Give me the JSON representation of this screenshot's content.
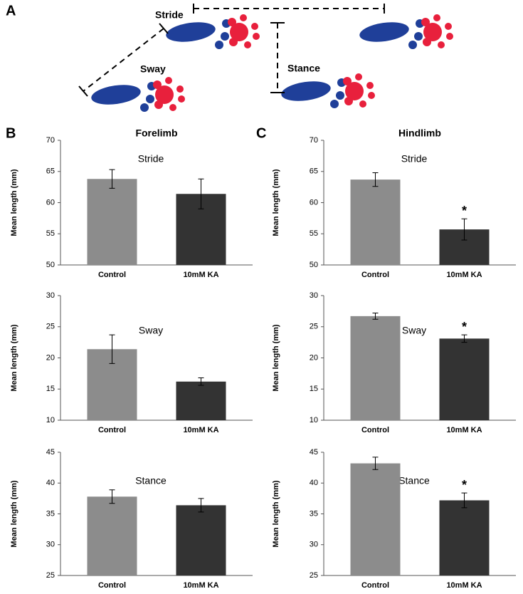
{
  "panels": {
    "a": "A",
    "b": "B",
    "c": "C"
  },
  "diagram": {
    "labels": [
      "Stride",
      "Sway",
      "Stance"
    ]
  },
  "headers": [
    "Forelimb",
    "Hindlimb"
  ],
  "chart_data": [
    {
      "type": "bar",
      "title": "Stride",
      "ylabel": "Mean length (mm)",
      "categories": [
        "Control",
        "10mM KA"
      ],
      "values": [
        63.8,
        61.4
      ],
      "errors": [
        1.5,
        2.4
      ],
      "markers": [
        null,
        null
      ],
      "colors": [
        "#8c8c8c",
        "#333333"
      ],
      "ylim": [
        50,
        70
      ],
      "yticks": [
        50,
        55,
        60,
        65,
        70
      ]
    },
    {
      "type": "bar",
      "title": "Sway",
      "ylabel": "Mean length (mm)",
      "categories": [
        "Control",
        "10mM KA"
      ],
      "values": [
        21.4,
        16.2
      ],
      "errors": [
        2.3,
        0.6
      ],
      "markers": [
        null,
        null
      ],
      "colors": [
        "#8c8c8c",
        "#333333"
      ],
      "ylim": [
        10,
        30
      ],
      "yticks": [
        10,
        15,
        20,
        25,
        30
      ]
    },
    {
      "type": "bar",
      "title": "Stance",
      "ylabel": "Mean length (mm)",
      "categories": [
        "Control",
        "10mM KA"
      ],
      "values": [
        37.8,
        36.4
      ],
      "errors": [
        1.1,
        1.1
      ],
      "markers": [
        null,
        null
      ],
      "colors": [
        "#8c8c8c",
        "#333333"
      ],
      "ylim": [
        25,
        45
      ],
      "yticks": [
        25,
        30,
        35,
        40,
        45
      ]
    },
    {
      "type": "bar",
      "title": "Stride",
      "ylabel": "Mean length (mm)",
      "categories": [
        "Control",
        "10mM KA"
      ],
      "values": [
        63.7,
        55.7
      ],
      "errors": [
        1.1,
        1.7
      ],
      "markers": [
        null,
        "*"
      ],
      "colors": [
        "#8c8c8c",
        "#333333"
      ],
      "ylim": [
        50,
        70
      ],
      "yticks": [
        50,
        55,
        60,
        65,
        70
      ]
    },
    {
      "type": "bar",
      "title": "Sway",
      "ylabel": "Mean length (mm)",
      "categories": [
        "Control",
        "10mM KA"
      ],
      "values": [
        26.7,
        23.1
      ],
      "errors": [
        0.5,
        0.6
      ],
      "markers": [
        null,
        "*"
      ],
      "colors": [
        "#8c8c8c",
        "#333333"
      ],
      "ylim": [
        10,
        30
      ],
      "yticks": [
        10,
        15,
        20,
        25,
        30
      ]
    },
    {
      "type": "bar",
      "title": "Stance",
      "ylabel": "Mean length (mm)",
      "categories": [
        "Control",
        "10mM KA"
      ],
      "values": [
        43.2,
        37.2
      ],
      "errors": [
        1.0,
        1.2
      ],
      "markers": [
        null,
        "*"
      ],
      "colors": [
        "#8c8c8c",
        "#333333"
      ],
      "ylim": [
        25,
        45
      ],
      "yticks": [
        25,
        30,
        35,
        40,
        45
      ]
    }
  ]
}
